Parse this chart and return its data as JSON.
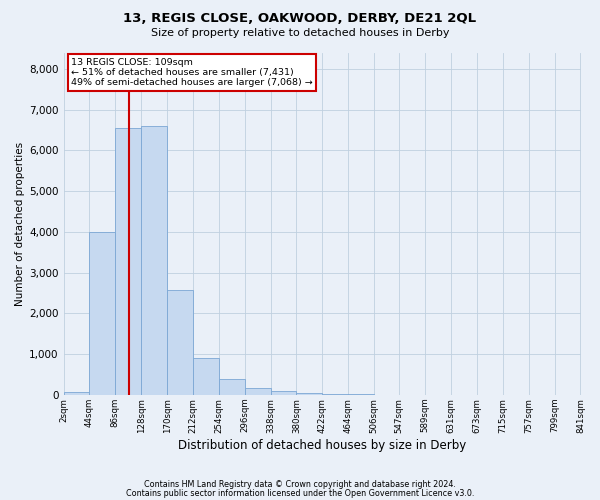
{
  "title": "13, REGIS CLOSE, OAKWOOD, DERBY, DE21 2QL",
  "subtitle": "Size of property relative to detached houses in Derby",
  "xlabel": "Distribution of detached houses by size in Derby",
  "ylabel": "Number of detached properties",
  "footer_line1": "Contains HM Land Registry data © Crown copyright and database right 2024.",
  "footer_line2": "Contains public sector information licensed under the Open Government Licence v3.0.",
  "annotation_title": "13 REGIS CLOSE: 109sqm",
  "annotation_line2": "← 51% of detached houses are smaller (7,431)",
  "annotation_line3": "49% of semi-detached houses are larger (7,068) →",
  "property_size_sqm": 109,
  "bar_edges": [
    2,
    44,
    86,
    128,
    170,
    212,
    254,
    296,
    338,
    380,
    422,
    464,
    506,
    547,
    589,
    631,
    673,
    715,
    757,
    799,
    841
  ],
  "bar_heights": [
    60,
    4000,
    6550,
    6600,
    2580,
    900,
    380,
    175,
    100,
    55,
    28,
    12,
    5,
    2,
    2,
    1,
    0,
    0,
    0,
    0
  ],
  "bar_color": "#c6d9f0",
  "bar_edge_color": "#7ba7d4",
  "red_line_color": "#cc0000",
  "annotation_box_color": "#cc0000",
  "annotation_fill": "#ffffff",
  "grid_color": "#c0d0e0",
  "bg_color": "#eaf0f8",
  "ylim": [
    0,
    8400
  ],
  "yticks": [
    0,
    1000,
    2000,
    3000,
    4000,
    5000,
    6000,
    7000,
    8000
  ],
  "tick_labels": [
    "2sqm",
    "44sqm",
    "86sqm",
    "128sqm",
    "170sqm",
    "212sqm",
    "254sqm",
    "296sqm",
    "338sqm",
    "380sqm",
    "422sqm",
    "464sqm",
    "506sqm",
    "547sqm",
    "589sqm",
    "631sqm",
    "673sqm",
    "715sqm",
    "757sqm",
    "799sqm",
    "841sqm"
  ]
}
